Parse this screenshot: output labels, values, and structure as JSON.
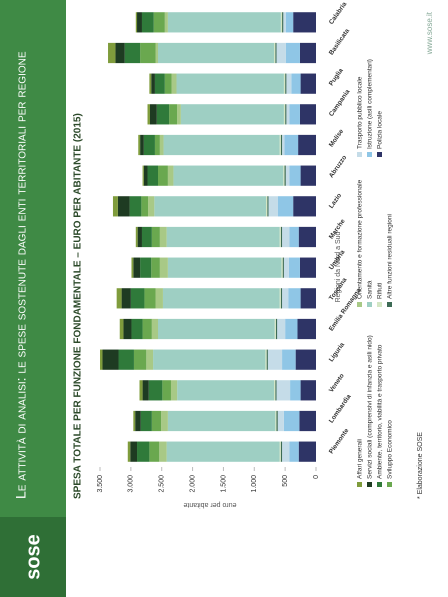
{
  "logo": "sose",
  "header": {
    "title": "Le attività di analisi: le spese sostenute dagli enti territoriali per regione"
  },
  "footer": {
    "note": "* Elaborazione SOSE",
    "url": "www.sose.it"
  },
  "chart_data": {
    "type": "stacked-bar",
    "title": "SPESA TOTALE PER FUNZIONE FONDAMENTALE – EURO PER ABITANTE (2015)",
    "x_label": "Regioni da Nord a Sud",
    "y_label": "euro per abitante",
    "categories": [
      "Piemonte",
      "Lombardia",
      "Veneto",
      "Liguria",
      "Emilia Romagna",
      "Toscana",
      "Umbria",
      "Marche",
      "Lazio",
      "Abruzzo",
      "Molise",
      "Campania",
      "Puglia",
      "Basilicata",
      "Calabria"
    ],
    "ylim": [
      0,
      3500
    ],
    "yticks": [
      {
        "value": 3500,
        "label": "3.500"
      },
      {
        "value": 3000,
        "label": "3.000"
      },
      {
        "value": 2500,
        "label": "2.500"
      },
      {
        "value": 2000,
        "label": "2.000"
      },
      {
        "value": 1500,
        "label": "1.500"
      },
      {
        "value": 1000,
        "label": "1.000"
      },
      500,
      0
    ],
    "series": [
      {
        "name": "Affari generali",
        "color": "#7f9c3c",
        "values": [
          40,
          30,
          50,
          40,
          60,
          80,
          30,
          30,
          80,
          20,
          30,
          40,
          30,
          120,
          20
        ]
      },
      {
        "name": "Servizi sociali (comprensivi di infanzia e asili nido)",
        "color": "#1e3b22",
        "values": [
          110,
          90,
          100,
          260,
          130,
          150,
          110,
          70,
          190,
          60,
          60,
          110,
          60,
          150,
          80
        ]
      },
      {
        "name": "Ambiente, territorio, viabilità e trasporto privato",
        "color": "#2f7a3a",
        "values": [
          200,
          180,
          220,
          250,
          180,
          220,
          180,
          160,
          190,
          170,
          180,
          200,
          160,
          250,
          190
        ]
      },
      {
        "name": "Sviluppo Economico",
        "color": "#6aa84f",
        "values": [
          160,
          150,
          140,
          200,
          150,
          180,
          140,
          130,
          110,
          160,
          80,
          130,
          110,
          250,
          180
        ]
      },
      {
        "name": "Orientamento e formazione professionale",
        "color": "#a8c986",
        "values": [
          120,
          110,
          100,
          110,
          100,
          120,
          130,
          110,
          100,
          90,
          60,
          60,
          80,
          40,
          50
        ]
      },
      {
        "name": "Sanità",
        "color": "#9ecfc3",
        "values": [
          1830,
          1740,
          1570,
          1820,
          1890,
          1890,
          1840,
          1830,
          1810,
          1780,
          1880,
          1670,
          1740,
          1880,
          1830
        ]
      },
      {
        "name": "Rifiuti",
        "color": "#d4e6c4",
        "values": [
          20,
          20,
          20,
          20,
          20,
          20,
          20,
          20,
          20,
          20,
          20,
          20,
          20,
          20,
          20
        ]
      },
      {
        "name": "Altre funzioni residuali regioni",
        "color": "#3d6b55",
        "values": [
          20,
          20,
          20,
          20,
          20,
          20,
          20,
          20,
          20,
          20,
          20,
          20,
          20,
          20,
          20
        ]
      },
      {
        "name": "Trasporto pubblico locale",
        "color": "#c5dce8",
        "values": [
          120,
          100,
          220,
          230,
          130,
          100,
          80,
          120,
          150,
          60,
          40,
          50,
          80,
          150,
          40
        ]
      },
      {
        "name": "Istruzione (asili complementari)",
        "color": "#8fc6e6",
        "values": [
          150,
          250,
          170,
          220,
          200,
          200,
          180,
          150,
          250,
          180,
          220,
          170,
          150,
          230,
          120
        ]
      },
      {
        "name": "Polizia locale",
        "color": "#2e3466",
        "values": [
          280,
          270,
          250,
          330,
          300,
          250,
          260,
          280,
          370,
          250,
          290,
          260,
          250,
          260,
          370
        ]
      }
    ]
  }
}
